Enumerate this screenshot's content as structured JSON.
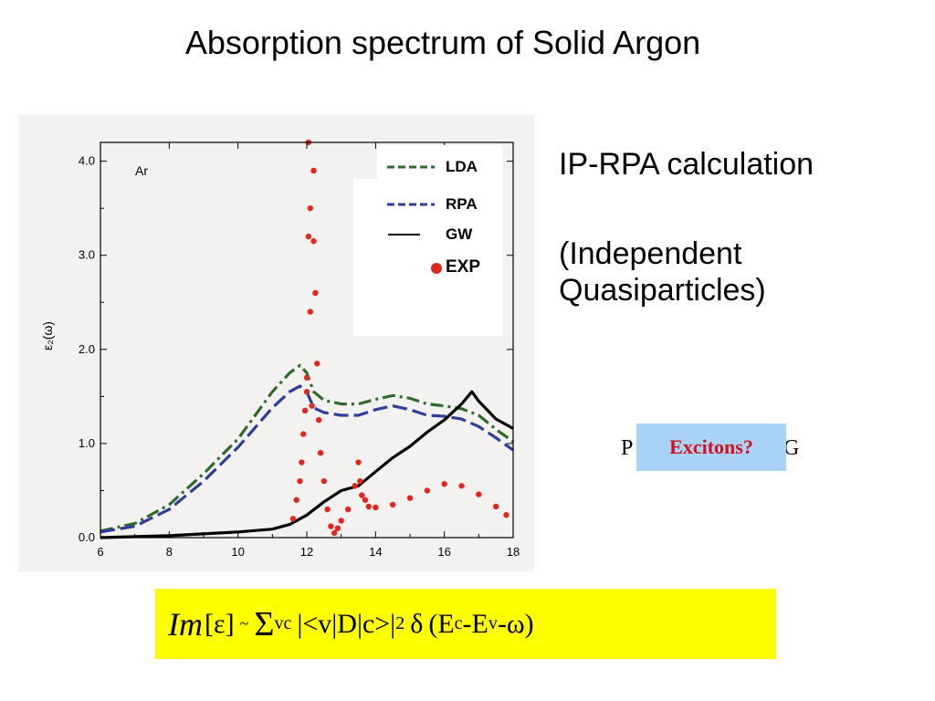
{
  "slide": {
    "title": "Absorption spectrum of Solid Argon",
    "side_text_1": "IP-RPA calculation",
    "side_text_2_line1": "(Independent",
    "side_text_2_line2": "Quasiparticles)",
    "obscured_left": "P",
    "obscured_right": "G",
    "excitons_label": "Excitons?",
    "formula": {
      "im": "Im",
      "bracket": "[ε]",
      "tilde": "~",
      "sigma": "Σ",
      "sigma_sub": "vc",
      "matrix": "|<v|D|c>|",
      "sq": "2",
      "delta": "δ",
      "open": "(E",
      "sub_c": "c",
      "mid": "-E",
      "sub_v": "v",
      "end": "-ω)"
    }
  },
  "chart_data": {
    "type": "line",
    "panel_label": "Ar",
    "ylabel": "ε₂(ω)",
    "xlabel": "",
    "xlim": [
      6,
      18
    ],
    "ylim": [
      0,
      4.2
    ],
    "xticks": [
      6,
      8,
      10,
      12,
      14,
      16,
      18
    ],
    "yticks": [
      0.0,
      1.0,
      2.0,
      3.0,
      4.0
    ],
    "ytick_labels": [
      "0.0",
      "1.0",
      "2.0",
      "3.0",
      "4.0"
    ],
    "legend_position": "top-right",
    "colors": {
      "LDA": "#2f6b2c",
      "RPA": "#2f3f99",
      "GW": "#000000",
      "EXP": "#e0281c"
    },
    "series": [
      {
        "name": "LDA",
        "style": "dash-dot",
        "x": [
          6.0,
          7.0,
          8.0,
          9.0,
          10.0,
          11.0,
          11.5,
          11.8,
          12.0,
          12.2,
          12.5,
          13.0,
          13.5,
          14.0,
          14.5,
          15.0,
          15.5,
          16.0,
          16.5,
          17.0,
          17.5,
          18.0
        ],
        "y": [
          0.07,
          0.15,
          0.35,
          0.68,
          1.05,
          1.55,
          1.75,
          1.83,
          1.75,
          1.55,
          1.46,
          1.42,
          1.42,
          1.47,
          1.51,
          1.48,
          1.42,
          1.4,
          1.37,
          1.3,
          1.15,
          1.02
        ]
      },
      {
        "name": "RPA",
        "style": "dashed",
        "x": [
          6.0,
          7.0,
          8.0,
          9.0,
          10.0,
          11.0,
          11.5,
          11.8,
          12.0,
          12.2,
          12.5,
          13.0,
          13.5,
          14.0,
          14.5,
          15.0,
          15.5,
          16.0,
          16.5,
          17.0,
          17.5,
          18.0
        ],
        "y": [
          0.06,
          0.12,
          0.3,
          0.6,
          0.96,
          1.38,
          1.55,
          1.61,
          1.55,
          1.38,
          1.33,
          1.3,
          1.3,
          1.36,
          1.4,
          1.36,
          1.3,
          1.29,
          1.26,
          1.18,
          1.06,
          0.93
        ]
      },
      {
        "name": "GW",
        "style": "solid",
        "x": [
          6.0,
          8.0,
          10.0,
          11.0,
          11.5,
          12.0,
          12.5,
          13.0,
          13.5,
          14.0,
          14.5,
          15.0,
          15.5,
          16.0,
          16.5,
          16.8,
          17.0,
          17.5,
          18.0
        ],
        "y": [
          0.0,
          0.02,
          0.06,
          0.09,
          0.14,
          0.24,
          0.38,
          0.5,
          0.55,
          0.7,
          0.85,
          0.97,
          1.12,
          1.25,
          1.42,
          1.55,
          1.45,
          1.26,
          1.16
        ]
      },
      {
        "name": "EXP",
        "style": "dots",
        "x": [
          11.6,
          11.7,
          11.8,
          11.85,
          11.9,
          11.95,
          12.0,
          12.0,
          12.05,
          12.05,
          12.1,
          12.1,
          12.15,
          12.2,
          12.2,
          12.25,
          12.3,
          12.35,
          12.4,
          12.5,
          12.6,
          12.7,
          12.8,
          12.9,
          13.0,
          13.2,
          13.4,
          13.5,
          13.55,
          13.6,
          13.7,
          13.8,
          14.0,
          14.5,
          15.0,
          15.5,
          16.0,
          16.5,
          17.0,
          17.5,
          17.8
        ],
        "y": [
          0.2,
          0.4,
          0.6,
          0.8,
          1.1,
          1.35,
          1.55,
          1.7,
          4.2,
          3.2,
          3.5,
          2.4,
          1.4,
          3.9,
          3.15,
          2.6,
          1.85,
          1.25,
          0.9,
          0.6,
          0.3,
          0.12,
          0.05,
          0.1,
          0.18,
          0.3,
          0.55,
          0.8,
          0.6,
          0.45,
          0.4,
          0.33,
          0.32,
          0.35,
          0.42,
          0.5,
          0.57,
          0.55,
          0.46,
          0.33,
          0.24
        ]
      }
    ]
  }
}
